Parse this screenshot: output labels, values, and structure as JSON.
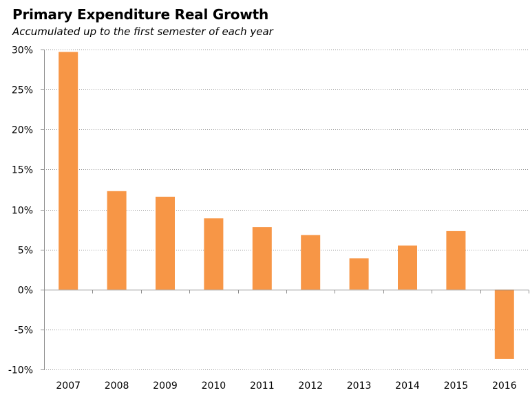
{
  "chart_data": {
    "type": "bar",
    "title": "Primary Expenditure  Real Growth",
    "subtitle": "Accumulated up to the first semester of each year",
    "categories": [
      "2007",
      "2008",
      "2009",
      "2010",
      "2011",
      "2012",
      "2013",
      "2014",
      "2015",
      "2016"
    ],
    "values": [
      29.7,
      12.3,
      11.6,
      8.9,
      7.8,
      6.8,
      3.9,
      5.5,
      7.3,
      -8.7
    ],
    "ylim": [
      -10,
      30
    ],
    "yticks": [
      30,
      25,
      20,
      15,
      10,
      5,
      0,
      -5,
      -10
    ],
    "ytick_labels": [
      "30%",
      "25%",
      "20%",
      "15%",
      "10%",
      "5%",
      "0%",
      "-5%",
      "-10%"
    ],
    "bar_color": "#F79646",
    "grid": "horizontal-dotted",
    "legend": "none"
  }
}
